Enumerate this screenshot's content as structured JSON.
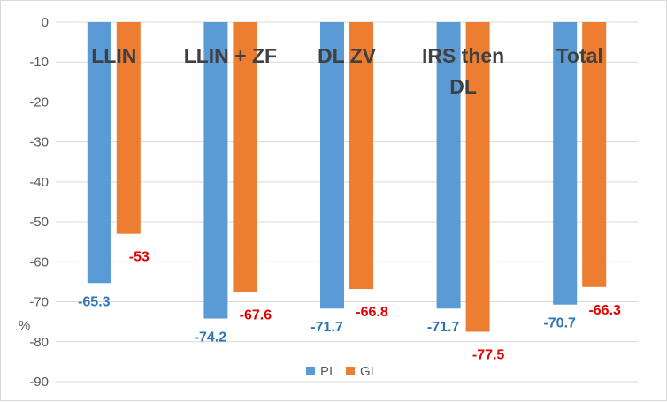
{
  "chart_data": {
    "type": "bar",
    "categories": [
      "LLIN",
      "LLIN + ZF",
      "DL ZV",
      "IRS then DL",
      "Total"
    ],
    "category_lines": [
      [
        "LLIN"
      ],
      [
        "LLIN + ZF"
      ],
      [
        "DL ZV"
      ],
      [
        "IRS then",
        "DL"
      ],
      [
        "Total"
      ]
    ],
    "series": [
      {
        "name": "PI",
        "values": [
          -65.3,
          -74.2,
          -71.7,
          -71.7,
          -70.7
        ],
        "labels": [
          "-65.3",
          "-74.2",
          "-71.7",
          "-71.7",
          "-70.7"
        ],
        "color": "#5b9bd5",
        "label_color": "#2e75b6"
      },
      {
        "name": "GI",
        "values": [
          -53,
          -67.6,
          -66.8,
          -77.5,
          -66.3
        ],
        "labels": [
          "-53",
          "-67.6",
          "-66.8",
          "-77.5",
          "-66.3"
        ],
        "color": "#ed7d31",
        "label_color": "#e00000"
      }
    ],
    "ylabel": "%",
    "ylim": [
      -90,
      0
    ],
    "yticks": [
      0,
      -10,
      -20,
      -30,
      -40,
      -50,
      -60,
      -70,
      -80,
      -90
    ],
    "grid": true,
    "legend_position": "bottom-center"
  }
}
